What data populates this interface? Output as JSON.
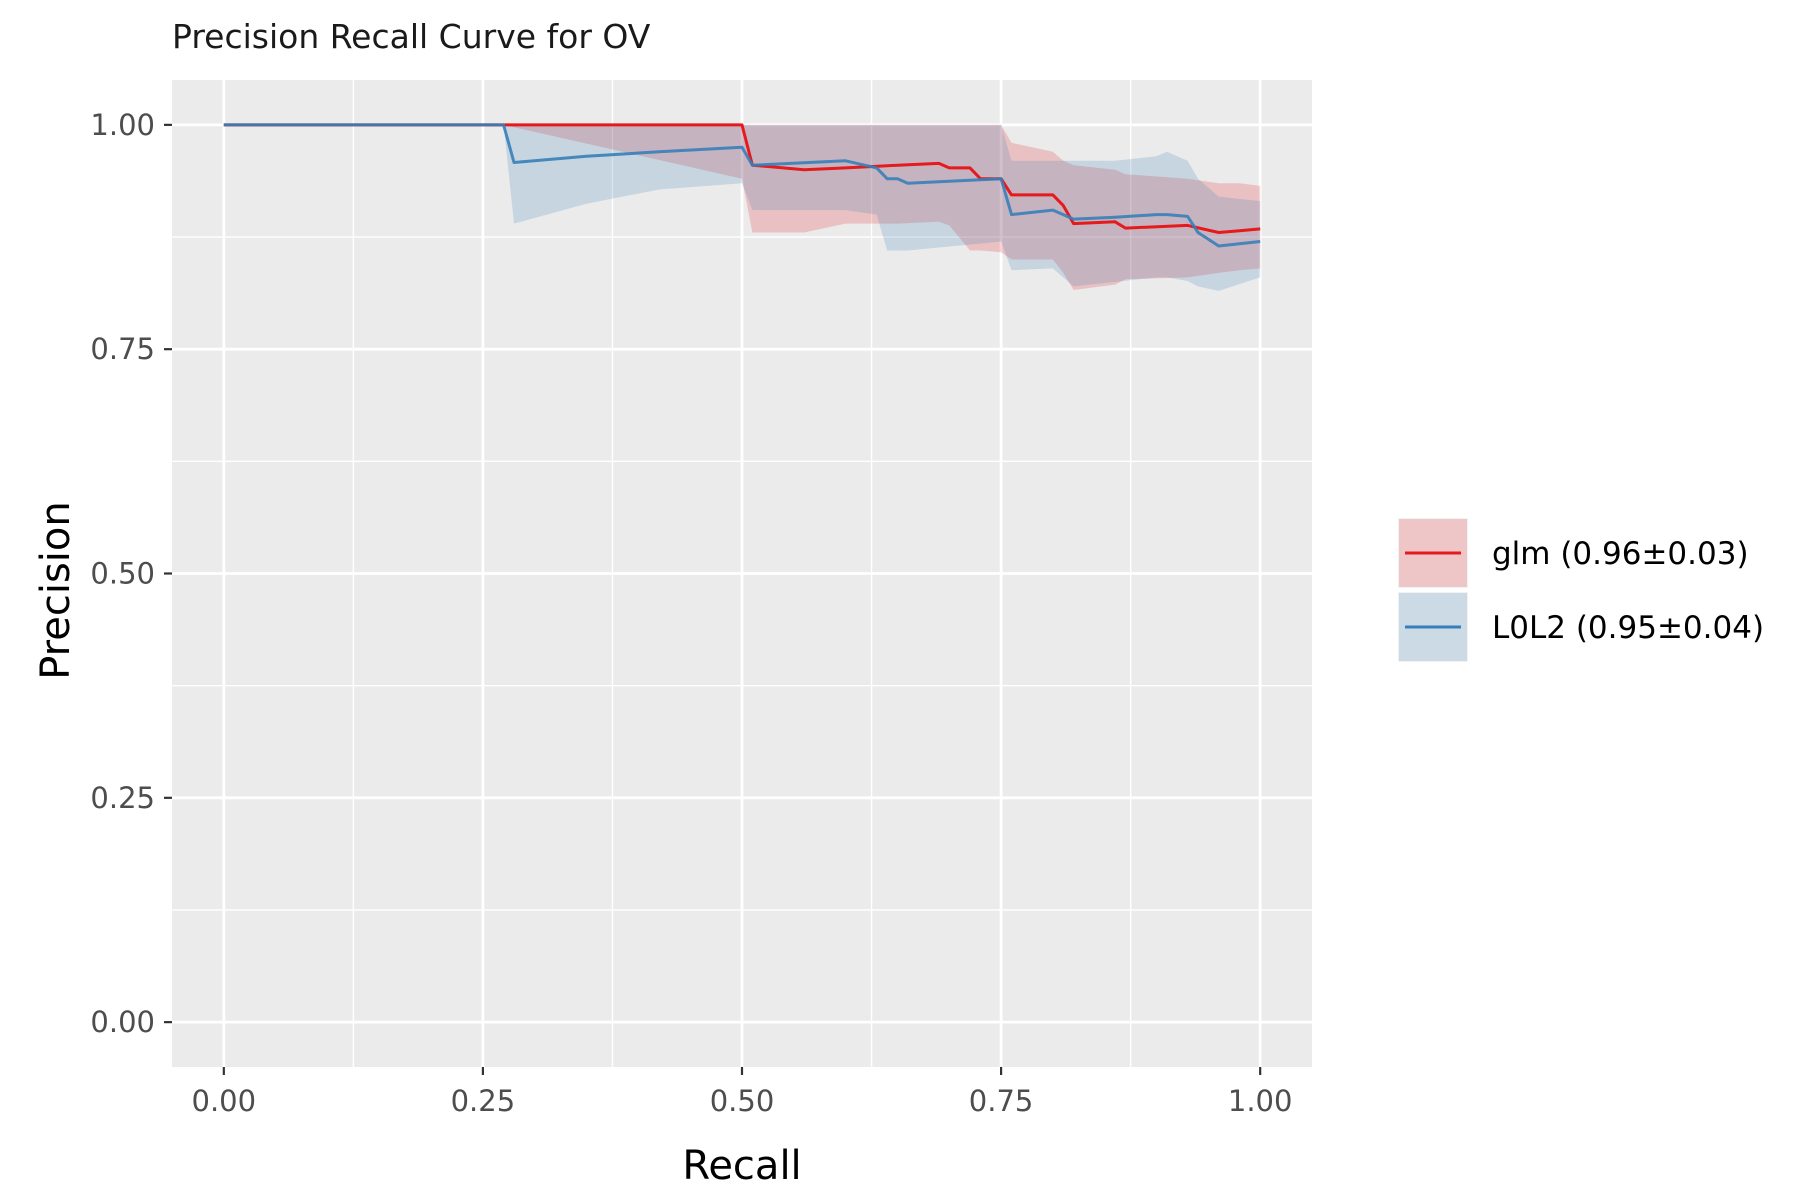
{
  "chart_data": {
    "type": "line",
    "title": "Precision Recall Curve for OV",
    "xlabel": "Recall",
    "ylabel": "Precision",
    "xlim": [
      -0.05,
      1.05
    ],
    "ylim": [
      -0.05,
      1.05
    ],
    "x_ticks": [
      0.0,
      0.25,
      0.5,
      0.75,
      1.0
    ],
    "x_tick_labels": [
      "0.00",
      "0.25",
      "0.50",
      "0.75",
      "1.00"
    ],
    "y_ticks": [
      0.0,
      0.25,
      0.5,
      0.75,
      1.0
    ],
    "y_tick_labels": [
      "0.00",
      "0.25",
      "0.50",
      "0.75",
      "1.00"
    ],
    "grid": true,
    "legend_position": "right",
    "series": [
      {
        "name": "glm (0.96±0.03)",
        "color": "#e41a1c",
        "ribbon_color": "#e41a1c",
        "x": [
          0.0,
          0.27,
          0.5,
          0.51,
          0.56,
          0.6,
          0.65,
          0.69,
          0.7,
          0.72,
          0.73,
          0.75,
          0.76,
          0.8,
          0.81,
          0.82,
          0.86,
          0.87,
          0.93,
          0.96,
          0.98,
          1.0
        ],
        "y": [
          1.0,
          1.0,
          1.0,
          0.955,
          0.95,
          0.952,
          0.955,
          0.957,
          0.952,
          0.952,
          0.94,
          0.94,
          0.922,
          0.922,
          0.91,
          0.89,
          0.892,
          0.885,
          0.888,
          0.88,
          0.882,
          0.884
        ],
        "lower": [
          1.0,
          1.0,
          0.94,
          0.88,
          0.88,
          0.89,
          0.89,
          0.892,
          0.888,
          0.86,
          0.86,
          0.858,
          0.85,
          0.85,
          0.835,
          0.816,
          0.822,
          0.828,
          0.83,
          0.835,
          0.838,
          0.84
        ],
        "upper": [
          1.0,
          1.0,
          1.0,
          1.0,
          1.0,
          1.0,
          1.0,
          1.0,
          1.0,
          1.0,
          1.0,
          1.0,
          0.98,
          0.97,
          0.96,
          0.955,
          0.95,
          0.945,
          0.94,
          0.935,
          0.935,
          0.932
        ]
      },
      {
        "name": "L0L2 (0.95±0.04)",
        "color": "#377eb8",
        "ribbon_color": "#377eb8",
        "x": [
          0.0,
          0.27,
          0.28,
          0.35,
          0.42,
          0.5,
          0.51,
          0.6,
          0.63,
          0.64,
          0.65,
          0.66,
          0.75,
          0.76,
          0.8,
          0.82,
          0.86,
          0.9,
          0.91,
          0.93,
          0.94,
          0.96,
          1.0
        ],
        "y": [
          1.0,
          1.0,
          0.958,
          0.965,
          0.97,
          0.975,
          0.955,
          0.96,
          0.952,
          0.94,
          0.94,
          0.935,
          0.94,
          0.9,
          0.905,
          0.895,
          0.897,
          0.9,
          0.9,
          0.898,
          0.88,
          0.865,
          0.87
        ],
        "lower": [
          1.0,
          1.0,
          0.89,
          0.912,
          0.928,
          0.935,
          0.905,
          0.905,
          0.9,
          0.86,
          0.86,
          0.86,
          0.87,
          0.838,
          0.84,
          0.82,
          0.825,
          0.83,
          0.83,
          0.826,
          0.82,
          0.815,
          0.83
        ],
        "upper": [
          1.0,
          1.0,
          1.0,
          1.0,
          1.0,
          1.0,
          1.0,
          1.0,
          1.0,
          1.0,
          1.0,
          1.0,
          1.0,
          0.96,
          0.96,
          0.96,
          0.96,
          0.965,
          0.97,
          0.96,
          0.94,
          0.92,
          0.915
        ]
      }
    ]
  }
}
